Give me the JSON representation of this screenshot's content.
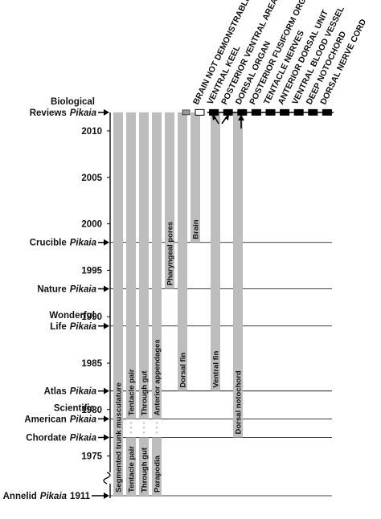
{
  "axis": {
    "ticks": [
      1975,
      1980,
      1985,
      1990,
      1995,
      2000,
      2005,
      2010
    ]
  },
  "events": [
    {
      "lines": [
        "Biological",
        "Reviews"
      ],
      "name": "Pikaia",
      "year": 2012
    },
    {
      "lines": [
        "Crucible"
      ],
      "name": "Pikaia",
      "year": 1998
    },
    {
      "lines": [
        "Nature"
      ],
      "name": "Pikaia",
      "year": 1993
    },
    {
      "lines": [
        "Wonderful",
        "Life"
      ],
      "name": "Pikaia",
      "year": 1989
    },
    {
      "lines": [
        "Atlas"
      ],
      "name": "Pikaia",
      "year": 1982
    },
    {
      "lines": [
        "Scientific",
        "American"
      ],
      "name": "Pikaia",
      "year": 1979
    },
    {
      "lines": [
        "Chordate"
      ],
      "name": "Pikaia",
      "year": 1977
    },
    {
      "lines": [
        "Annelid"
      ],
      "name": "Pikaia",
      "year": 1911,
      "year_printed": true
    }
  ],
  "traits": [
    {
      "segments": [
        {
          "label": "Segmented trunk musculature",
          "from": 2012,
          "to": 1911
        }
      ]
    },
    {
      "segments": [
        {
          "label": "Tentacle pair",
          "from": 2012,
          "to": 1979
        },
        {
          "label": "Tentacle pair",
          "from": 1977,
          "to": 1911
        }
      ]
    },
    {
      "segments": [
        {
          "label": "Through gut",
          "from": 2012,
          "to": 1979
        },
        {
          "label": "Through gut",
          "from": 1977,
          "to": 1911
        }
      ]
    },
    {
      "segments": [
        {
          "label": "Anterior appendages",
          "from": 2012,
          "to": 1979
        },
        {
          "label": "Parapodia",
          "from": 1977,
          "to": 1911
        }
      ]
    },
    {
      "segments": [
        {
          "label": "Pharyngeal pores",
          "from": 2012,
          "to": 1993
        }
      ]
    },
    {
      "segments": [
        {
          "label": "Dorsal fin",
          "from": 2012,
          "to": 1982
        }
      ]
    },
    {
      "segments": [
        {
          "label": "Brain",
          "from": 2012,
          "to": 1998
        }
      ]
    },
    {
      "segments": [
        {
          "label": "Ventral fin",
          "from": 2012,
          "to": 1982
        }
      ]
    },
    {
      "segments": [
        {
          "label": "Dorsal notochord",
          "from": 2012,
          "to": 1977
        }
      ]
    }
  ],
  "new_features": [
    "BRAIN NOT DEMONSTRABLE",
    "VENTRAL KEEL",
    "POSTERIOR VENTRAL AREA",
    "DORSAL ORGAN",
    "POSTERIOR FUSIFORM ORGAN",
    "TENTACLE NERVES",
    "ANTERIOR DORSAL UNIT",
    "VENTRAL BLOOD VESSEL",
    "DEEP NOTOCHORD",
    "DORSAL NERVE CORD"
  ]
}
